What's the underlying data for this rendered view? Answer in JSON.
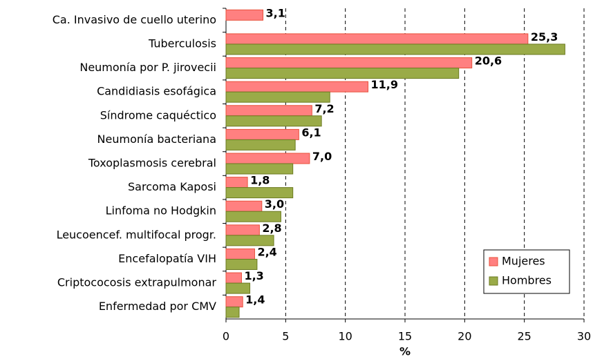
{
  "chart_data": {
    "type": "hbar",
    "categories": [
      "Ca. Invasivo de cuello uterino",
      "Tuberculosis",
      "Neumonía por P. jirovecii",
      "Candidiasis esofágica",
      "Síndrome caquéctico",
      "Neumonía bacteriana",
      "Toxoplasmosis cerebral",
      "Sarcoma Kaposi",
      "Linfoma no Hodgkin",
      "Leucoencef. multifocal progr.",
      "Encefalopatía VIH",
      "Criptococosis extrapulmonar",
      "Enfermedad por CMV"
    ],
    "series": [
      {
        "name": "Mujeres",
        "color": "#ff8080",
        "border": "#e8503a",
        "values": [
          3.1,
          25.3,
          20.6,
          11.9,
          7.2,
          6.1,
          7.0,
          1.8,
          3.0,
          2.8,
          2.4,
          1.3,
          1.4
        ],
        "value_labels": [
          "3,1",
          "25,3",
          "20,6",
          "11,9",
          "7,2",
          "6,1",
          "7,0",
          "1,8",
          "3,0",
          "2,8",
          "2,4",
          "1,3",
          "1,4"
        ]
      },
      {
        "name": "Hombres",
        "color": "#9aab48",
        "border": "#6b7a20",
        "values": [
          null,
          28.4,
          19.5,
          8.7,
          8.0,
          5.8,
          5.6,
          5.6,
          4.6,
          4.0,
          2.6,
          2.0,
          1.1
        ]
      }
    ],
    "x_label": "%",
    "xlim": [
      0,
      30
    ],
    "xticks": [
      0,
      5,
      10,
      15,
      20,
      25,
      30
    ],
    "grid": true,
    "legend": "bottom-right"
  }
}
